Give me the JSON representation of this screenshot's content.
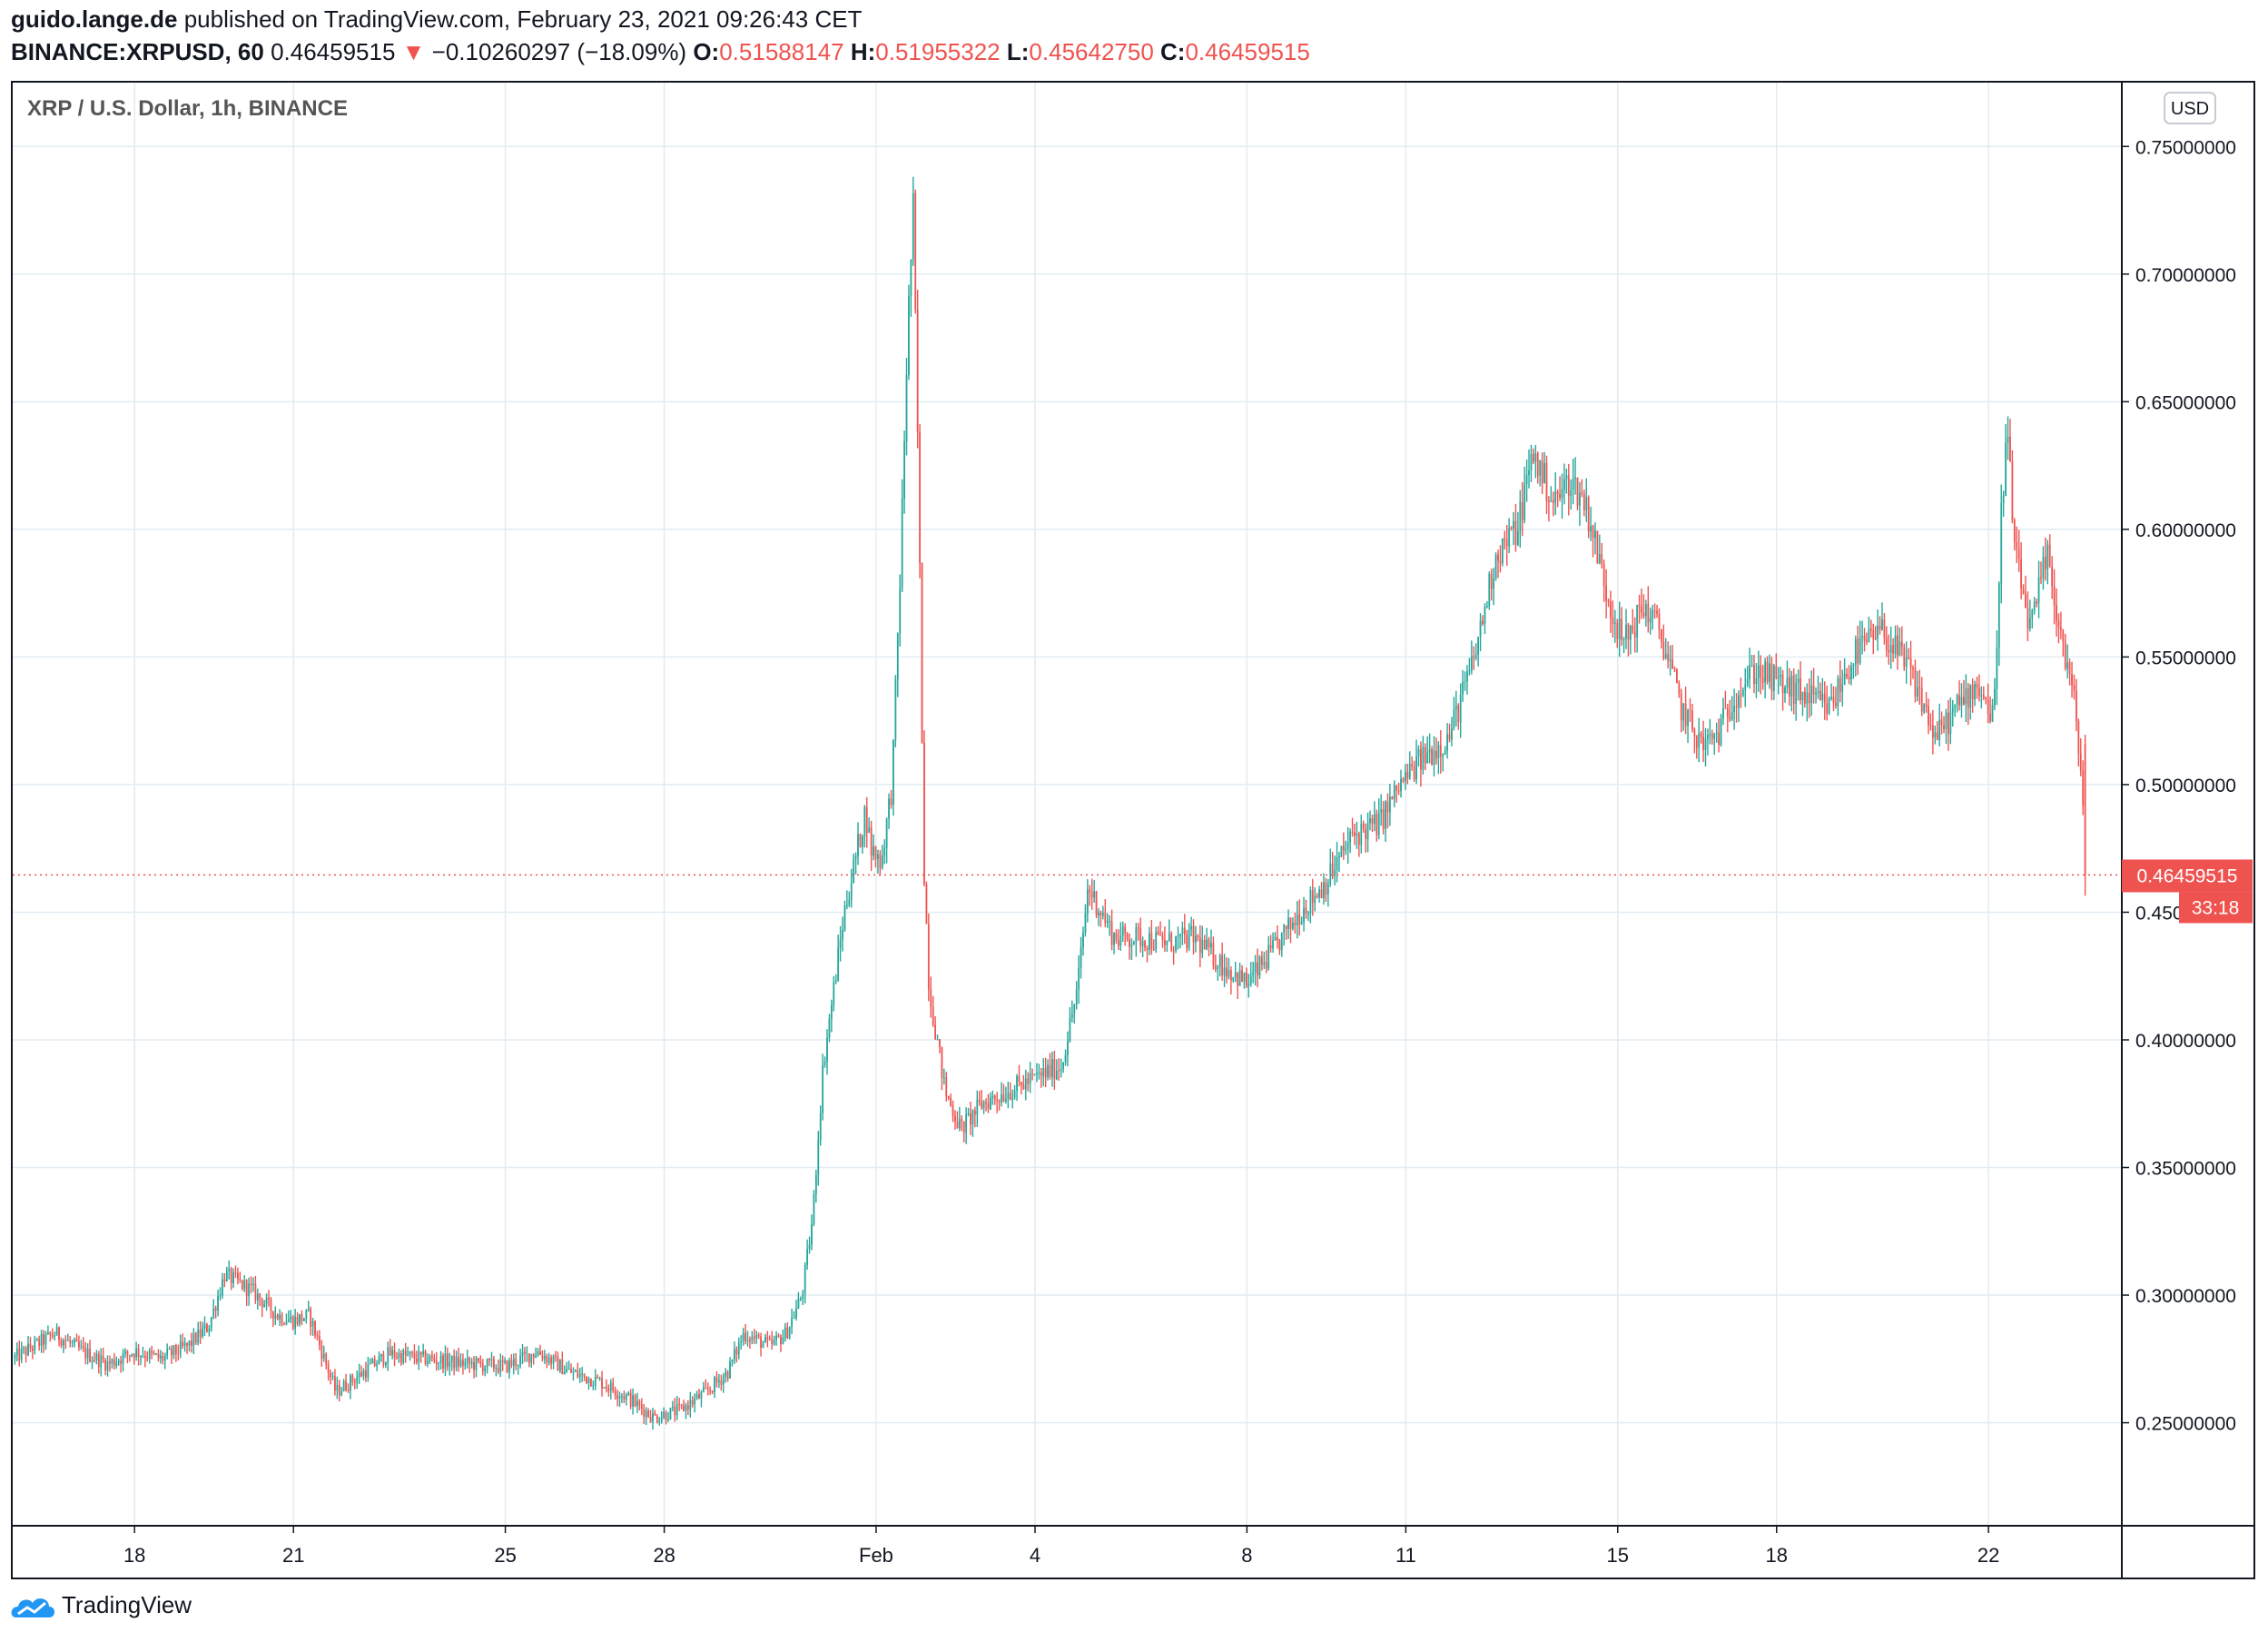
{
  "header": {
    "author": "guido.lange.de",
    "published": "published on TradingView.com, February 23, 2021 09:26:43 CET",
    "symbol": "BINANCE:XRPUSD, 60",
    "last": "0.46459515",
    "change": "−0.10260297 (−18.09%)",
    "o_label": "O:",
    "o_value": "0.51588147",
    "h_label": "H:",
    "h_value": "0.51955322",
    "l_label": "L:",
    "l_value": "0.45642750",
    "c_label": "C:",
    "c_value": "0.46459515"
  },
  "legend_title": "XRP / U.S. Dollar, 1h, BINANCE",
  "currency_button": "USD",
  "price_badge": "0.46459515",
  "countdown_badge": "33:18",
  "brand": "TradingView",
  "colors": {
    "up": "#26a69a",
    "down": "#ef5350",
    "grid": "#e1ecf2",
    "axis": "#787b86"
  },
  "chart_data": {
    "type": "candlestick",
    "title": "XRP / U.S. Dollar, 1h, BINANCE",
    "xlabel": "",
    "ylabel": "",
    "ylim": [
      0.21,
      0.775
    ],
    "grid": true,
    "y_ticks": [
      "0.25000000",
      "0.30000000",
      "0.35000000",
      "0.40000000",
      "0.45000000",
      "0.50000000",
      "0.55000000",
      "0.60000000",
      "0.65000000",
      "0.70000000",
      "0.75000000"
    ],
    "y_tick_values": [
      0.25,
      0.3,
      0.35,
      0.4,
      0.45,
      0.5,
      0.55,
      0.6,
      0.65,
      0.7,
      0.75
    ],
    "x_ticks": [
      {
        "label": "18",
        "day": 18
      },
      {
        "label": "21",
        "day": 21
      },
      {
        "label": "25",
        "day": 25
      },
      {
        "label": "28",
        "day": 28
      },
      {
        "label": "Feb",
        "day": 32
      },
      {
        "label": "4",
        "day": 35
      },
      {
        "label": "8",
        "day": 39
      },
      {
        "label": "11",
        "day": 42
      },
      {
        "label": "15",
        "day": 46
      },
      {
        "label": "18",
        "day": 49
      },
      {
        "label": "22",
        "day": 53
      }
    ],
    "xlim_days": [
      15.7,
      55.5
    ],
    "last_price": 0.46459515,
    "close_path": [
      [
        15.7,
        0.275
      ],
      [
        16.5,
        0.285
      ],
      [
        17.0,
        0.278
      ],
      [
        17.5,
        0.273
      ],
      [
        18.0,
        0.278
      ],
      [
        18.5,
        0.275
      ],
      [
        19.0,
        0.28
      ],
      [
        19.4,
        0.288
      ],
      [
        19.7,
        0.308
      ],
      [
        20.2,
        0.302
      ],
      [
        20.7,
        0.292
      ],
      [
        21.0,
        0.29
      ],
      [
        21.3,
        0.292
      ],
      [
        21.5,
        0.28
      ],
      [
        21.8,
        0.262
      ],
      [
        22.2,
        0.268
      ],
      [
        22.8,
        0.277
      ],
      [
        23.5,
        0.275
      ],
      [
        24.3,
        0.273
      ],
      [
        25.0,
        0.272
      ],
      [
        25.6,
        0.278
      ],
      [
        26.2,
        0.27
      ],
      [
        26.8,
        0.266
      ],
      [
        27.3,
        0.26
      ],
      [
        27.8,
        0.252
      ],
      [
        28.3,
        0.255
      ],
      [
        28.8,
        0.262
      ],
      [
        29.2,
        0.27
      ],
      [
        29.5,
        0.285
      ],
      [
        30.0,
        0.28
      ],
      [
        30.3,
        0.285
      ],
      [
        30.6,
        0.3
      ],
      [
        30.8,
        0.33
      ],
      [
        31.0,
        0.39
      ],
      [
        31.2,
        0.42
      ],
      [
        31.4,
        0.45
      ],
      [
        31.6,
        0.47
      ],
      [
        31.8,
        0.49
      ],
      [
        31.9,
        0.475
      ],
      [
        32.1,
        0.47
      ],
      [
        32.3,
        0.5
      ],
      [
        32.45,
        0.58
      ],
      [
        32.6,
        0.68
      ],
      [
        32.7,
        0.725
      ],
      [
        32.8,
        0.62
      ],
      [
        32.9,
        0.47
      ],
      [
        33.0,
        0.42
      ],
      [
        33.3,
        0.38
      ],
      [
        33.6,
        0.365
      ],
      [
        34.0,
        0.375
      ],
      [
        34.5,
        0.38
      ],
      [
        35.0,
        0.385
      ],
      [
        35.5,
        0.39
      ],
      [
        35.8,
        0.42
      ],
      [
        36.0,
        0.46
      ],
      [
        36.5,
        0.44
      ],
      [
        37.0,
        0.44
      ],
      [
        37.5,
        0.438
      ],
      [
        38.0,
        0.44
      ],
      [
        38.5,
        0.43
      ],
      [
        39.0,
        0.422
      ],
      [
        39.5,
        0.435
      ],
      [
        40.0,
        0.45
      ],
      [
        40.5,
        0.462
      ],
      [
        41.0,
        0.48
      ],
      [
        41.5,
        0.485
      ],
      [
        41.9,
        0.5
      ],
      [
        42.3,
        0.51
      ],
      [
        42.8,
        0.518
      ],
      [
        43.3,
        0.55
      ],
      [
        43.7,
        0.59
      ],
      [
        44.1,
        0.6
      ],
      [
        44.4,
        0.63
      ],
      [
        44.8,
        0.61
      ],
      [
        45.1,
        0.62
      ],
      [
        45.4,
        0.61
      ],
      [
        45.8,
        0.575
      ],
      [
        46.1,
        0.555
      ],
      [
        46.5,
        0.57
      ],
      [
        46.8,
        0.56
      ],
      [
        47.2,
        0.53
      ],
      [
        47.6,
        0.515
      ],
      [
        47.9,
        0.52
      ],
      [
        48.2,
        0.535
      ],
      [
        48.6,
        0.545
      ],
      [
        49.0,
        0.54
      ],
      [
        49.5,
        0.535
      ],
      [
        50.0,
        0.53
      ],
      [
        50.5,
        0.552
      ],
      [
        51.0,
        0.56
      ],
      [
        51.5,
        0.545
      ],
      [
        51.8,
        0.53
      ],
      [
        52.0,
        0.518
      ],
      [
        52.4,
        0.53
      ],
      [
        52.8,
        0.54
      ],
      [
        53.1,
        0.525
      ],
      [
        53.25,
        0.61
      ],
      [
        53.35,
        0.64
      ],
      [
        53.5,
        0.59
      ],
      [
        53.8,
        0.56
      ],
      [
        54.1,
        0.59
      ],
      [
        54.4,
        0.555
      ],
      [
        54.6,
        0.535
      ],
      [
        54.75,
        0.505
      ],
      [
        54.85,
        0.4646
      ]
    ],
    "last_bar_day": 54.85
  }
}
